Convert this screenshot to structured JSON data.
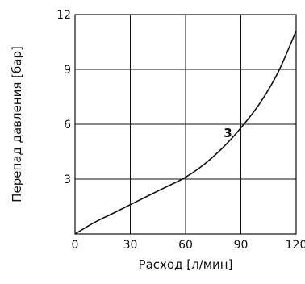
{
  "chart_data": {
    "type": "line",
    "xlabel": "Расход [л/мин]",
    "ylabel": "Перепад давления [бар]",
    "xlim": [
      0,
      120
    ],
    "ylim": [
      0,
      12
    ],
    "x_ticks": [
      0,
      30,
      60,
      90,
      120
    ],
    "y_ticks": [
      3,
      6,
      9,
      12
    ],
    "x_tick_labels": [
      "0",
      "30",
      "60",
      "90",
      "120"
    ],
    "y_tick_labels": [
      "3",
      "6",
      "9",
      "12"
    ],
    "grid": true,
    "series": [
      {
        "label": "3",
        "color": "#111111",
        "x": [
          0,
          10,
          20,
          30,
          40,
          50,
          60,
          70,
          80,
          90,
          100,
          110,
          120
        ],
        "y": [
          0,
          0.6,
          1.1,
          1.6,
          2.1,
          2.6,
          3.1,
          3.8,
          4.7,
          5.8,
          7.1,
          8.8,
          11.1
        ]
      }
    ]
  }
}
